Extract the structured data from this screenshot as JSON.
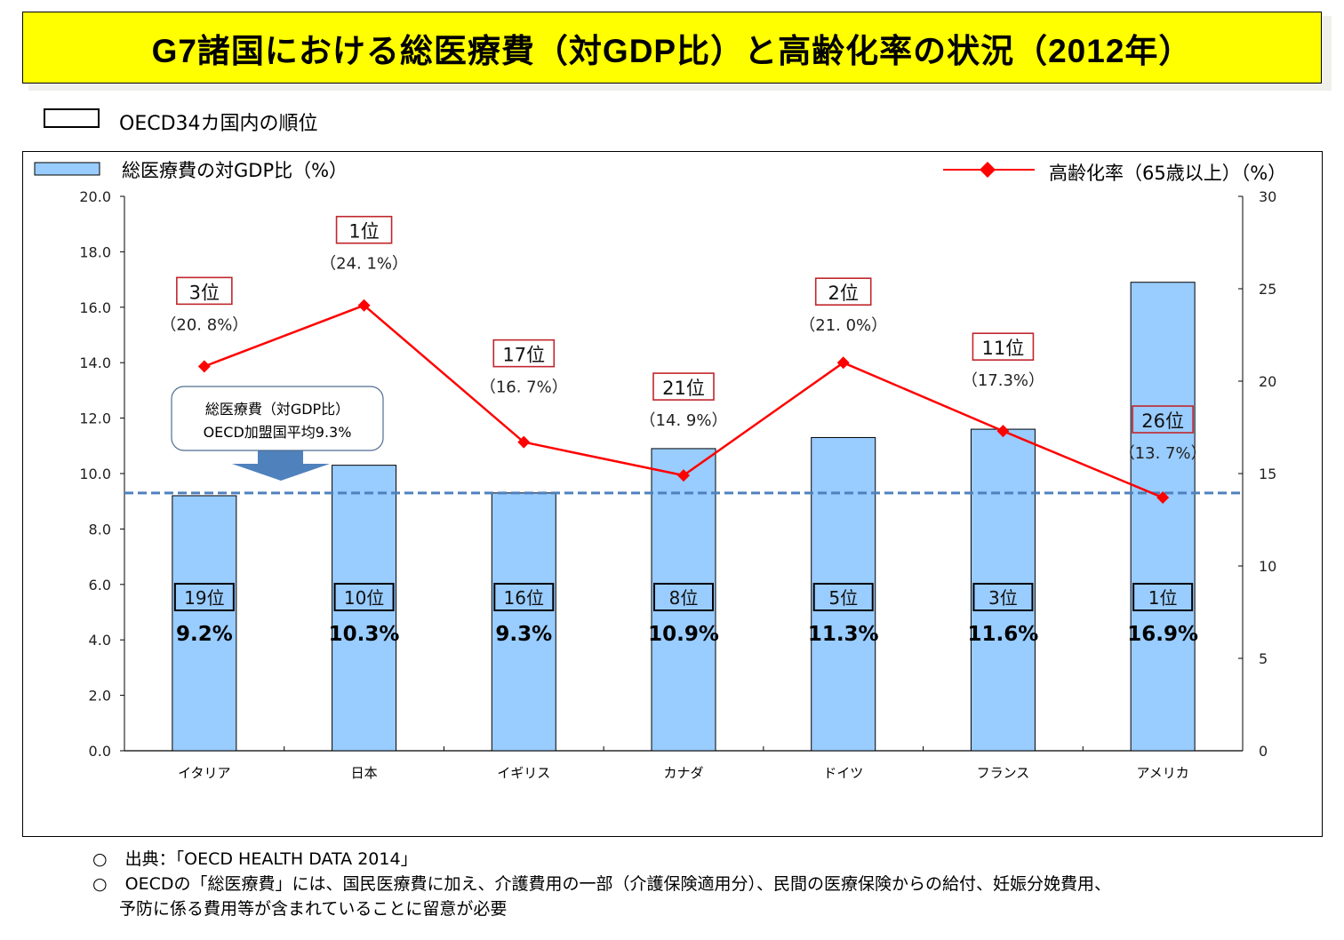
{
  "title": "G7諸国における総医療費（対GDP比）と高齢化率の状況（2012年）",
  "rank_legend_label": "OECD34カ国内の順位",
  "notes": {
    "bullet": "○",
    "source": "出典：「OECD HEALTH DATA 2014」",
    "note_line1": "OECDの「総医療費」には、国民医療費に加え、介護費用の一部（介護保険適用分）、民間の医療保険からの給付、妊娠分娩費用、",
    "note_line2": "予防に係る費用等が含まれていることに留意が必要"
  },
  "callout": {
    "line1": "総医療費（対GDP比）",
    "line2": "OECD加盟国平均9.3%"
  },
  "colors": {
    "bar_fill": "#99ccff",
    "line": "#ff0000",
    "average_line": "#4f81bd",
    "title_bg": "#ffff00",
    "elderly_rank_box": "#c0262c",
    "callout_arrow": "#4f81bd"
  },
  "chart_data": {
    "type": "bar",
    "title": "G7諸国における総医療費（対GDP比）と高齢化率の状況（2012年）",
    "categories": [
      "イタリア",
      "日本",
      "イギリス",
      "カナダ",
      "ドイツ",
      "フランス",
      "アメリカ"
    ],
    "series": [
      {
        "name": "総医療費の対GDP比（%）",
        "type": "bar",
        "axis": "left",
        "values": [
          9.2,
          10.3,
          9.3,
          10.9,
          11.3,
          11.6,
          16.9
        ],
        "value_labels": [
          "9.2%",
          "10.3%",
          "9.3%",
          "10.9%",
          "11.3%",
          "11.6%",
          "16.9%"
        ],
        "rank_labels": [
          "19位",
          "10位",
          "16位",
          "8位",
          "5位",
          "3位",
          "1位"
        ]
      },
      {
        "name": "高齢化率（65歳以上）（%）",
        "type": "line",
        "axis": "right",
        "values": [
          20.8,
          24.1,
          16.7,
          14.9,
          21.0,
          17.3,
          13.7
        ],
        "value_labels": [
          "（20. 8%）",
          "（24. 1%）",
          "（16. 7%）",
          "（14. 9%）",
          "（21. 0%）",
          "（17.3%）",
          "（13. 7%）"
        ],
        "rank_labels": [
          "3位",
          "1位",
          "17位",
          "21位",
          "2位",
          "11位",
          "26位"
        ]
      }
    ],
    "reference_line": {
      "name": "OECD加盟国平均",
      "value": 9.3,
      "axis": "left"
    },
    "y_left": {
      "ylim": [
        0,
        20
      ],
      "ticks": [
        "0.0",
        "2.0",
        "4.0",
        "6.0",
        "8.0",
        "10.0",
        "12.0",
        "14.0",
        "16.0",
        "18.0",
        "20.0"
      ]
    },
    "y_right": {
      "ylim": [
        0,
        30
      ],
      "ticks": [
        "0",
        "5",
        "10",
        "15",
        "20",
        "25",
        "30"
      ]
    },
    "xlabel": "",
    "ylabel": "",
    "legend": "top",
    "grid": false
  }
}
